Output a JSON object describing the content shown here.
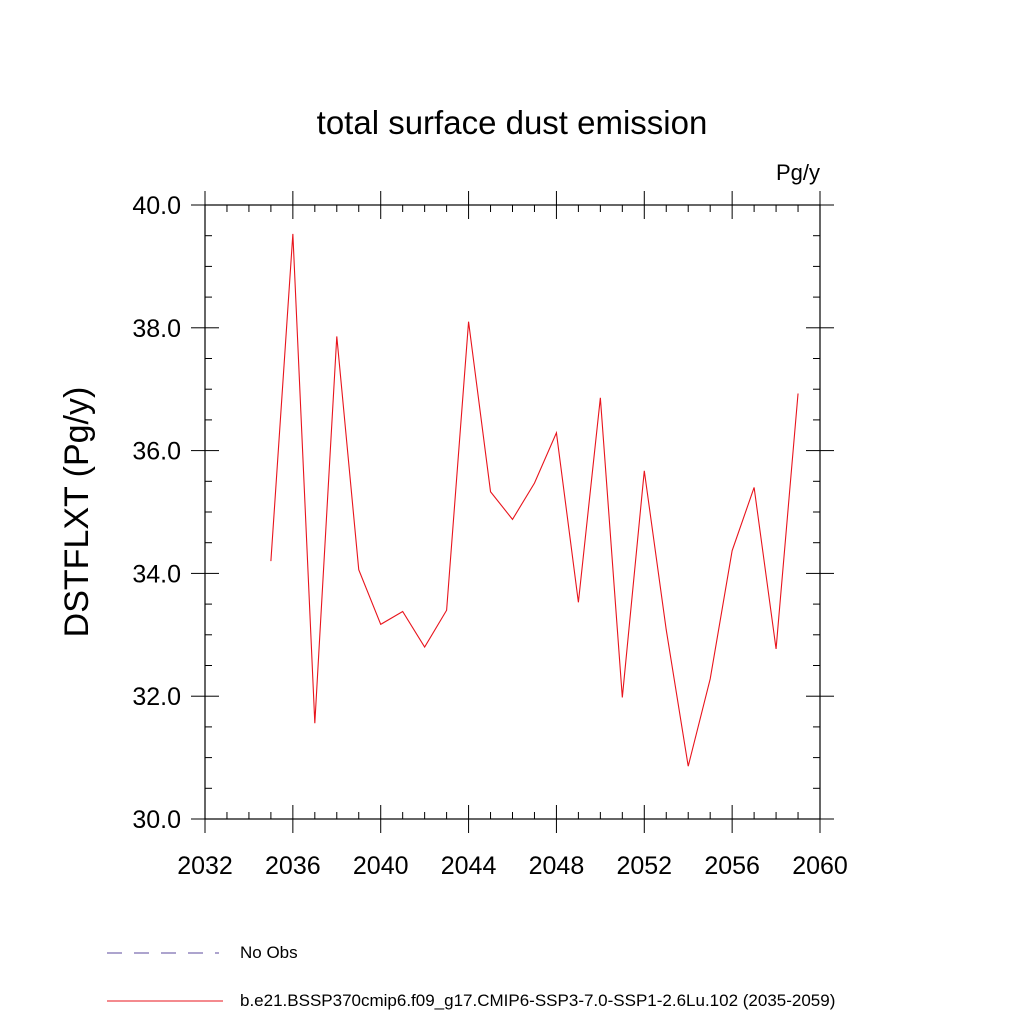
{
  "chart_data": {
    "type": "line",
    "title": "total surface dust emission",
    "units_label": "Pg/y",
    "ylabel": "DSTFLXT  (Pg/y)",
    "xlabel": "",
    "xlim": [
      2032,
      2060
    ],
    "ylim": [
      30.0,
      40.0
    ],
    "x_ticks": [
      "2032",
      "2036",
      "2040",
      "2044",
      "2048",
      "2052",
      "2056",
      "2060"
    ],
    "y_ticks": [
      "30.0",
      "32.0",
      "34.0",
      "36.0",
      "38.0",
      "40.0"
    ],
    "grid": false,
    "series": [
      {
        "name": "b.e21.BSSP370cmip6.f09_g17.CMIP6-SSP3-7.0-SSP1-2.6Lu.102 (2035-2059)",
        "color": "#e8141c",
        "x": [
          2035,
          2036,
          2037,
          2038,
          2039,
          2040,
          2041,
          2042,
          2043,
          2044,
          2045,
          2046,
          2047,
          2048,
          2049,
          2050,
          2051,
          2052,
          2053,
          2054,
          2055,
          2056,
          2057,
          2058,
          2059
        ],
        "y": [
          34.2,
          39.53,
          31.56,
          37.86,
          34.06,
          33.17,
          33.38,
          32.8,
          33.4,
          38.1,
          35.33,
          34.88,
          35.47,
          36.29,
          33.53,
          36.86,
          31.98,
          35.67,
          33.08,
          30.86,
          32.28,
          34.37,
          35.4,
          32.77,
          36.93
        ]
      }
    ],
    "legend": [
      {
        "label": "No Obs",
        "color": "#5b4a9e",
        "style": "dashed"
      },
      {
        "label": "b.e21.BSSP370cmip6.f09_g17.CMIP6-SSP3-7.0-SSP1-2.6Lu.102 (2035-2059)",
        "color": "#e8141c",
        "style": "solid"
      }
    ],
    "legend_position": "bottom-left"
  }
}
